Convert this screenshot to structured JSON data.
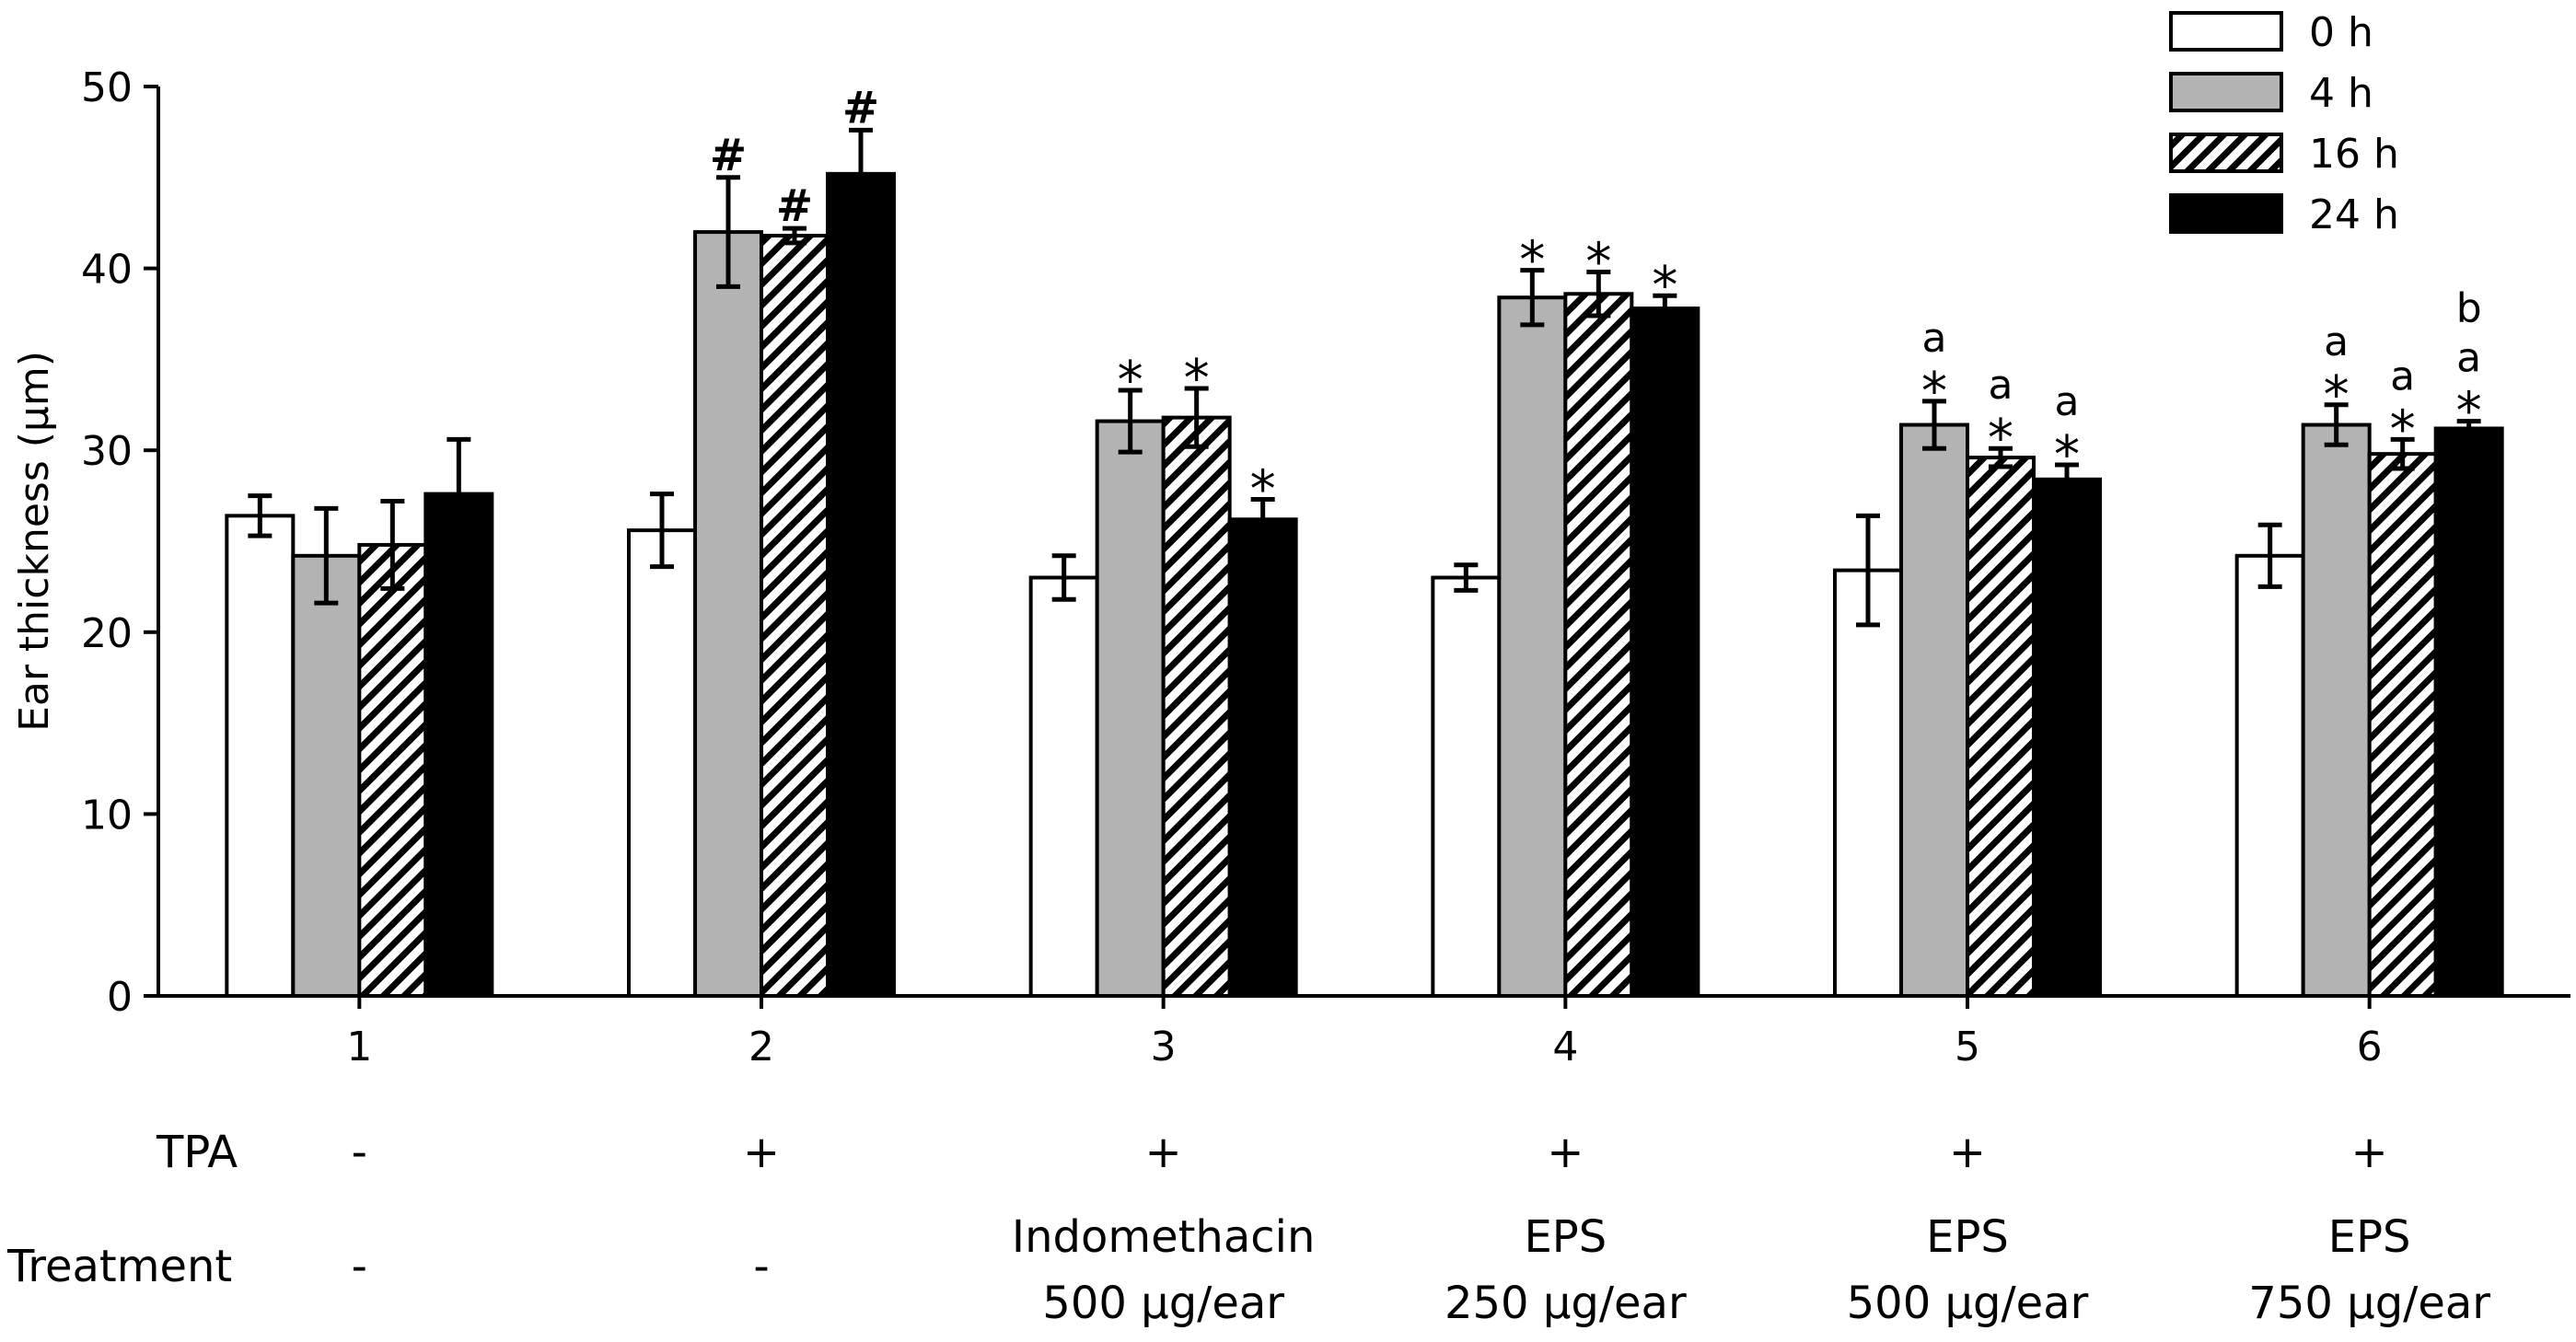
{
  "chart_data": {
    "type": "bar",
    "title": "",
    "xlabel": "",
    "ylabel": "Ear thickness (µm)",
    "ylim": [
      0,
      50
    ],
    "yticks": [
      0,
      10,
      20,
      30,
      40,
      50
    ],
    "grid": false,
    "legend_position": "top-right",
    "categories": [
      "1",
      "2",
      "3",
      "4",
      "5",
      "6"
    ],
    "row_labels": {
      "tpa": "TPA",
      "treatment": "Treatment"
    },
    "tpa": [
      "-",
      "+",
      "+",
      "+",
      "+",
      "+"
    ],
    "treatment": [
      {
        "line1": "-",
        "line2": ""
      },
      {
        "line1": "-",
        "line2": ""
      },
      {
        "line1": "Indomethacin",
        "line2": "500 µg/ear"
      },
      {
        "line1": "EPS",
        "line2": "250 µg/ear"
      },
      {
        "line1": "EPS",
        "line2": "500 µg/ear"
      },
      {
        "line1": "EPS",
        "line2": "750 µg/ear"
      }
    ],
    "series": [
      {
        "name": "0 h",
        "fill": "white",
        "values": [
          26.4,
          25.6,
          23.0,
          23.0,
          23.4,
          24.2
        ],
        "errors": [
          1.1,
          2.0,
          1.2,
          0.7,
          3.0,
          1.7
        ]
      },
      {
        "name": "4 h",
        "fill": "gray",
        "values": [
          24.2,
          42.0,
          31.6,
          38.4,
          31.4,
          31.4
        ],
        "errors": [
          2.6,
          3.0,
          1.7,
          1.5,
          1.3,
          1.1
        ]
      },
      {
        "name": "16 h",
        "fill": "hatched",
        "values": [
          24.8,
          41.8,
          31.8,
          38.6,
          29.6,
          29.8
        ],
        "errors": [
          2.4,
          0.4,
          1.6,
          1.2,
          0.5,
          0.8
        ]
      },
      {
        "name": "24 h",
        "fill": "black",
        "values": [
          27.6,
          45.2,
          26.2,
          37.8,
          28.4,
          31.2
        ],
        "errors": [
          3.0,
          2.4,
          1.1,
          0.7,
          0.8,
          0.4
        ]
      }
    ],
    "annotations": [
      [
        "",
        "",
        "",
        ""
      ],
      [
        "",
        "#",
        "#",
        "#"
      ],
      [
        "",
        "*",
        "*",
        "*"
      ],
      [
        "",
        "*",
        "*",
        "*"
      ],
      [
        "",
        "a\n*",
        "a\n*",
        "a\n*"
      ],
      [
        "",
        "a\n*",
        "a\n*",
        "b\na\n*"
      ]
    ],
    "colors": {
      "gray": "#b3b3b3",
      "black": "#000000",
      "white": "#ffffff",
      "axis": "#000000"
    }
  }
}
